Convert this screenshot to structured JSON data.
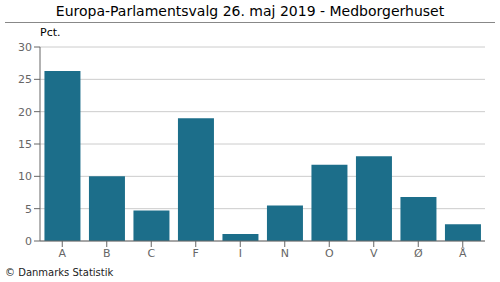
{
  "chart_data": {
    "type": "bar",
    "title": "Europa-Parlamentsvalg 26. maj 2019 - Medborgerhuset",
    "ylabel": "Pct.",
    "footer": "© Danmarks Statistik",
    "categories": [
      "A",
      "B",
      "C",
      "F",
      "I",
      "N",
      "O",
      "V",
      "Ø",
      "Å"
    ],
    "values": [
      26.3,
      10.0,
      4.7,
      19.0,
      1.1,
      5.5,
      11.8,
      13.1,
      6.8,
      2.6
    ],
    "color": "#1c6e8a",
    "ylim": [
      0,
      30
    ],
    "yticks": [
      0,
      5,
      10,
      15,
      20,
      25,
      30
    ],
    "grid": true
  }
}
